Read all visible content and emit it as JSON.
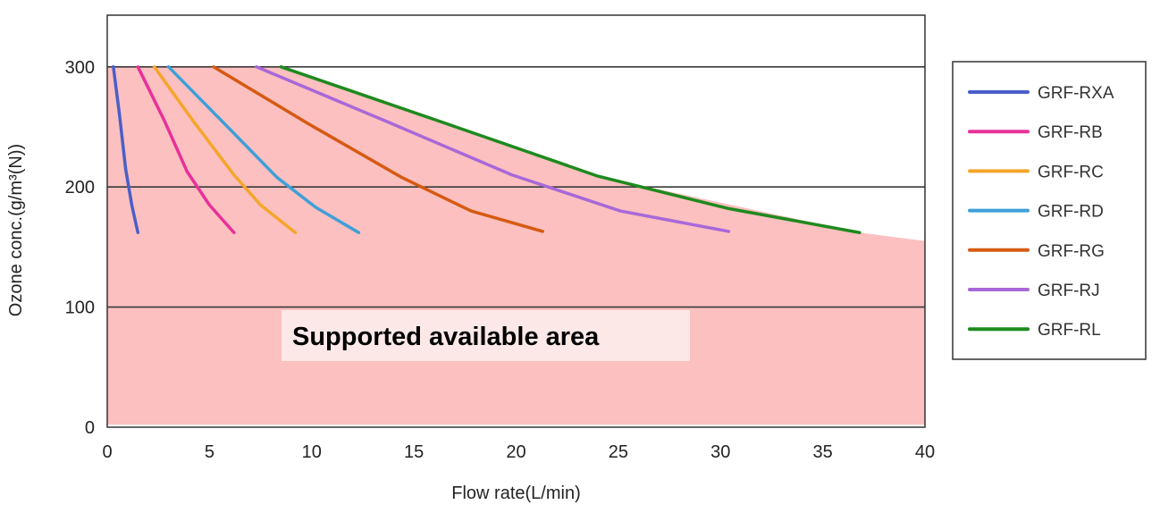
{
  "chart_data": {
    "type": "line",
    "xlabel": "Flow rate(L/min)",
    "ylabel": "Ozone conc.(g/m³(N))",
    "xlim": [
      0,
      40
    ],
    "ylim": [
      0,
      343
    ],
    "xticks": [
      0,
      5,
      10,
      15,
      20,
      25,
      30,
      35,
      40
    ],
    "yticks": [
      0,
      100,
      200,
      300
    ],
    "grid": "horizontal",
    "legend_position": "right",
    "annotation": "Supported available area",
    "supported_area": {
      "color": "#fcc0c0",
      "boundary": [
        [
          0,
          2
        ],
        [
          0,
          300
        ],
        [
          8.5,
          300
        ],
        [
          24,
          209
        ],
        [
          36.8,
          162
        ],
        [
          40,
          155
        ],
        [
          40,
          2
        ]
      ]
    },
    "series": [
      {
        "name": "GRF-RXA",
        "color": "#4a5fc8",
        "points": [
          [
            0.3,
            300
          ],
          [
            0.6,
            260
          ],
          [
            0.9,
            215
          ],
          [
            1.2,
            185
          ],
          [
            1.5,
            162
          ]
        ]
      },
      {
        "name": "GRF-RB",
        "color": "#e8309a",
        "points": [
          [
            1.5,
            300
          ],
          [
            2.8,
            255
          ],
          [
            3.9,
            213
          ],
          [
            5.0,
            185
          ],
          [
            6.2,
            162
          ]
        ]
      },
      {
        "name": "GRF-RC",
        "color": "#f5a52a",
        "points": [
          [
            2.3,
            300
          ],
          [
            4.2,
            255
          ],
          [
            6.2,
            210
          ],
          [
            7.5,
            185
          ],
          [
            9.2,
            162
          ]
        ]
      },
      {
        "name": "GRF-RD",
        "color": "#3ea0d8",
        "points": [
          [
            3.0,
            300
          ],
          [
            5.6,
            255
          ],
          [
            8.3,
            208
          ],
          [
            10.2,
            183
          ],
          [
            12.3,
            162
          ]
        ]
      },
      {
        "name": "GRF-RG",
        "color": "#d65a12",
        "points": [
          [
            5.2,
            300
          ],
          [
            9.8,
            253
          ],
          [
            14.4,
            208
          ],
          [
            17.8,
            180
          ],
          [
            21.3,
            163
          ]
        ]
      },
      {
        "name": "GRF-RJ",
        "color": "#a968d8",
        "points": [
          [
            7.3,
            300
          ],
          [
            13.6,
            255
          ],
          [
            19.8,
            210
          ],
          [
            25.1,
            180
          ],
          [
            30.4,
            163
          ]
        ]
      },
      {
        "name": "GRF-RL",
        "color": "#1e8a1e",
        "points": [
          [
            8.5,
            300
          ],
          [
            16.2,
            255
          ],
          [
            24.0,
            209
          ],
          [
            30.4,
            182
          ],
          [
            36.8,
            162
          ]
        ]
      }
    ]
  }
}
